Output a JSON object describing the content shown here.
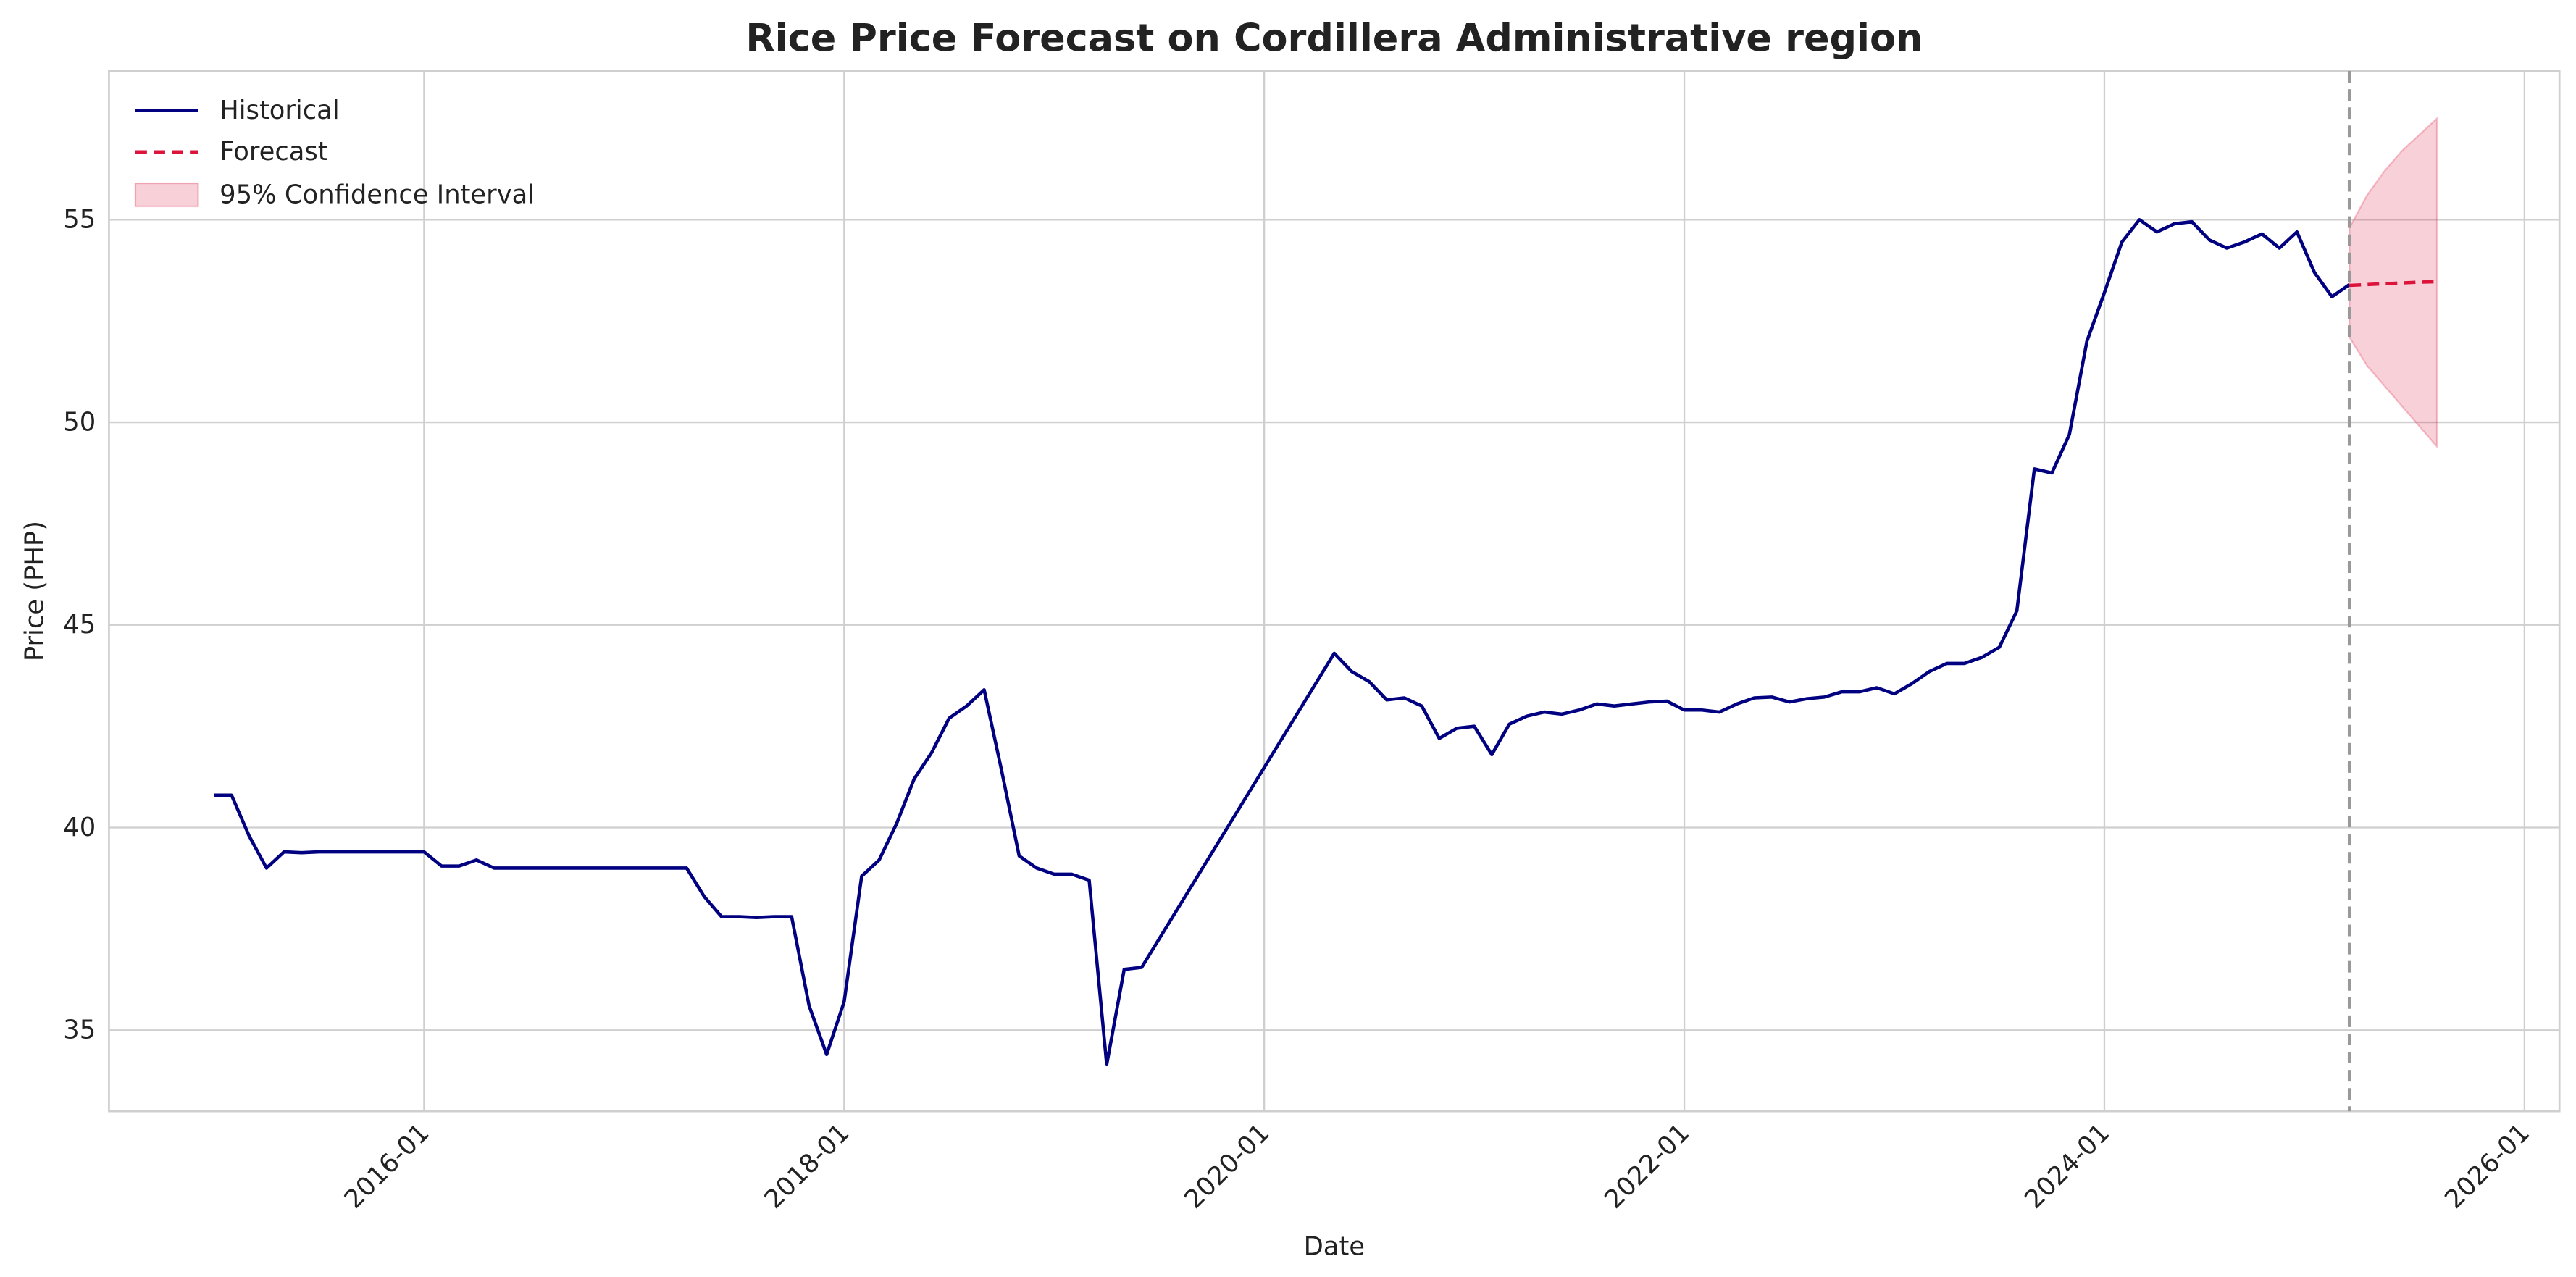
{
  "chart_data": {
    "type": "line",
    "title": "Rice Price Forecast on Cordillera Administrative region",
    "x_label": "Date",
    "y_label": "Price (PHP)",
    "xlim": [
      "2014-07",
      "2026-03"
    ],
    "xticks": [
      "2016-01",
      "2018-01",
      "2020-01",
      "2022-01",
      "2024-01",
      "2026-01"
    ],
    "ylim": [
      33.0,
      58.67
    ],
    "yticks": [
      35,
      40,
      45,
      50,
      55
    ],
    "grid": true,
    "legend": "upper left",
    "forecast_start": "2025-03",
    "series": [
      {
        "name": "Historical",
        "color": "#000080",
        "x": [
          "2015-01",
          "2015-02",
          "2015-03",
          "2015-04",
          "2015-05",
          "2015-06",
          "2015-07",
          "2015-08",
          "2015-09",
          "2015-10",
          "2015-11",
          "2015-12",
          "2016-01",
          "2016-02",
          "2016-03",
          "2016-04",
          "2016-05",
          "2016-06",
          "2016-07",
          "2016-08",
          "2016-09",
          "2016-10",
          "2016-11",
          "2016-12",
          "2017-01",
          "2017-02",
          "2017-03",
          "2017-04",
          "2017-05",
          "2017-06",
          "2017-07",
          "2017-08",
          "2017-09",
          "2017-10",
          "2017-11",
          "2017-12",
          "2018-01",
          "2018-02",
          "2018-03",
          "2018-04",
          "2018-05",
          "2018-06",
          "2018-07",
          "2018-08",
          "2018-09",
          "2018-10",
          "2018-11",
          "2018-12",
          "2019-01",
          "2019-02",
          "2019-03",
          "2019-04",
          "2019-05",
          "2019-06",
          "2020-05",
          "2020-06",
          "2020-07",
          "2020-08",
          "2020-09",
          "2020-10",
          "2020-11",
          "2020-12",
          "2021-01",
          "2021-02",
          "2021-03",
          "2021-04",
          "2021-05",
          "2021-06",
          "2021-07",
          "2021-08",
          "2021-09",
          "2021-10",
          "2021-11",
          "2021-12",
          "2022-01",
          "2022-02",
          "2022-03",
          "2022-04",
          "2022-05",
          "2022-06",
          "2022-07",
          "2022-08",
          "2022-09",
          "2022-10",
          "2022-11",
          "2022-12",
          "2023-01",
          "2023-02",
          "2023-03",
          "2023-04",
          "2023-05",
          "2023-06",
          "2023-07",
          "2023-08",
          "2023-09",
          "2023-10",
          "2023-11",
          "2023-12",
          "2024-01",
          "2024-02",
          "2024-03",
          "2024-04",
          "2024-05",
          "2024-06",
          "2024-07",
          "2024-08",
          "2024-09",
          "2024-10",
          "2024-11",
          "2024-12",
          "2025-01",
          "2025-02",
          "2025-03"
        ],
        "values": [
          40.8,
          40.8,
          39.8,
          39.0,
          39.4,
          39.38,
          39.4,
          39.4,
          39.4,
          39.4,
          39.4,
          39.4,
          39.4,
          39.05,
          39.05,
          39.2,
          39.0,
          39.0,
          39.0,
          39.0,
          39.0,
          39.0,
          39.0,
          39.0,
          39.0,
          39.0,
          39.0,
          39.0,
          38.3,
          37.8,
          37.8,
          37.78,
          37.8,
          37.8,
          35.6,
          34.4,
          35.7,
          38.8,
          39.2,
          40.1,
          41.2,
          41.85,
          42.7,
          43.0,
          43.4,
          41.4,
          39.3,
          39.0,
          38.85,
          38.85,
          38.7,
          34.15,
          36.5,
          36.55,
          44.3,
          43.85,
          43.6,
          43.15,
          43.2,
          43.0,
          42.2,
          42.45,
          42.5,
          41.8,
          42.55,
          42.75,
          42.85,
          42.8,
          42.9,
          43.05,
          43.0,
          43.05,
          43.1,
          43.12,
          42.9,
          42.9,
          42.85,
          43.05,
          43.2,
          43.22,
          43.1,
          43.18,
          43.22,
          43.35,
          43.35,
          43.45,
          43.3,
          43.55,
          43.85,
          44.05,
          44.05,
          44.2,
          44.45,
          45.35,
          48.85,
          48.75,
          49.7,
          52.0,
          53.2,
          54.45,
          55.0,
          54.7,
          54.9,
          54.95,
          54.5,
          54.3,
          54.45,
          54.65,
          54.3,
          54.7,
          53.7,
          53.1,
          53.4
        ]
      },
      {
        "name": "Forecast",
        "color": "#dc143c",
        "dashed": true,
        "x": [
          "2025-03",
          "2025-04",
          "2025-05",
          "2025-06",
          "2025-07",
          "2025-08"
        ],
        "values": [
          53.38,
          53.4,
          53.42,
          53.44,
          53.46,
          53.47
        ]
      }
    ],
    "confidence_interval": {
      "name": "95% Confidence Interval",
      "color": "#dc143c",
      "lower": [
        52.1,
        51.4,
        50.9,
        50.4,
        49.9,
        49.4
      ],
      "upper": [
        54.8,
        55.6,
        56.2,
        56.7,
        57.1,
        57.5
      ]
    }
  }
}
